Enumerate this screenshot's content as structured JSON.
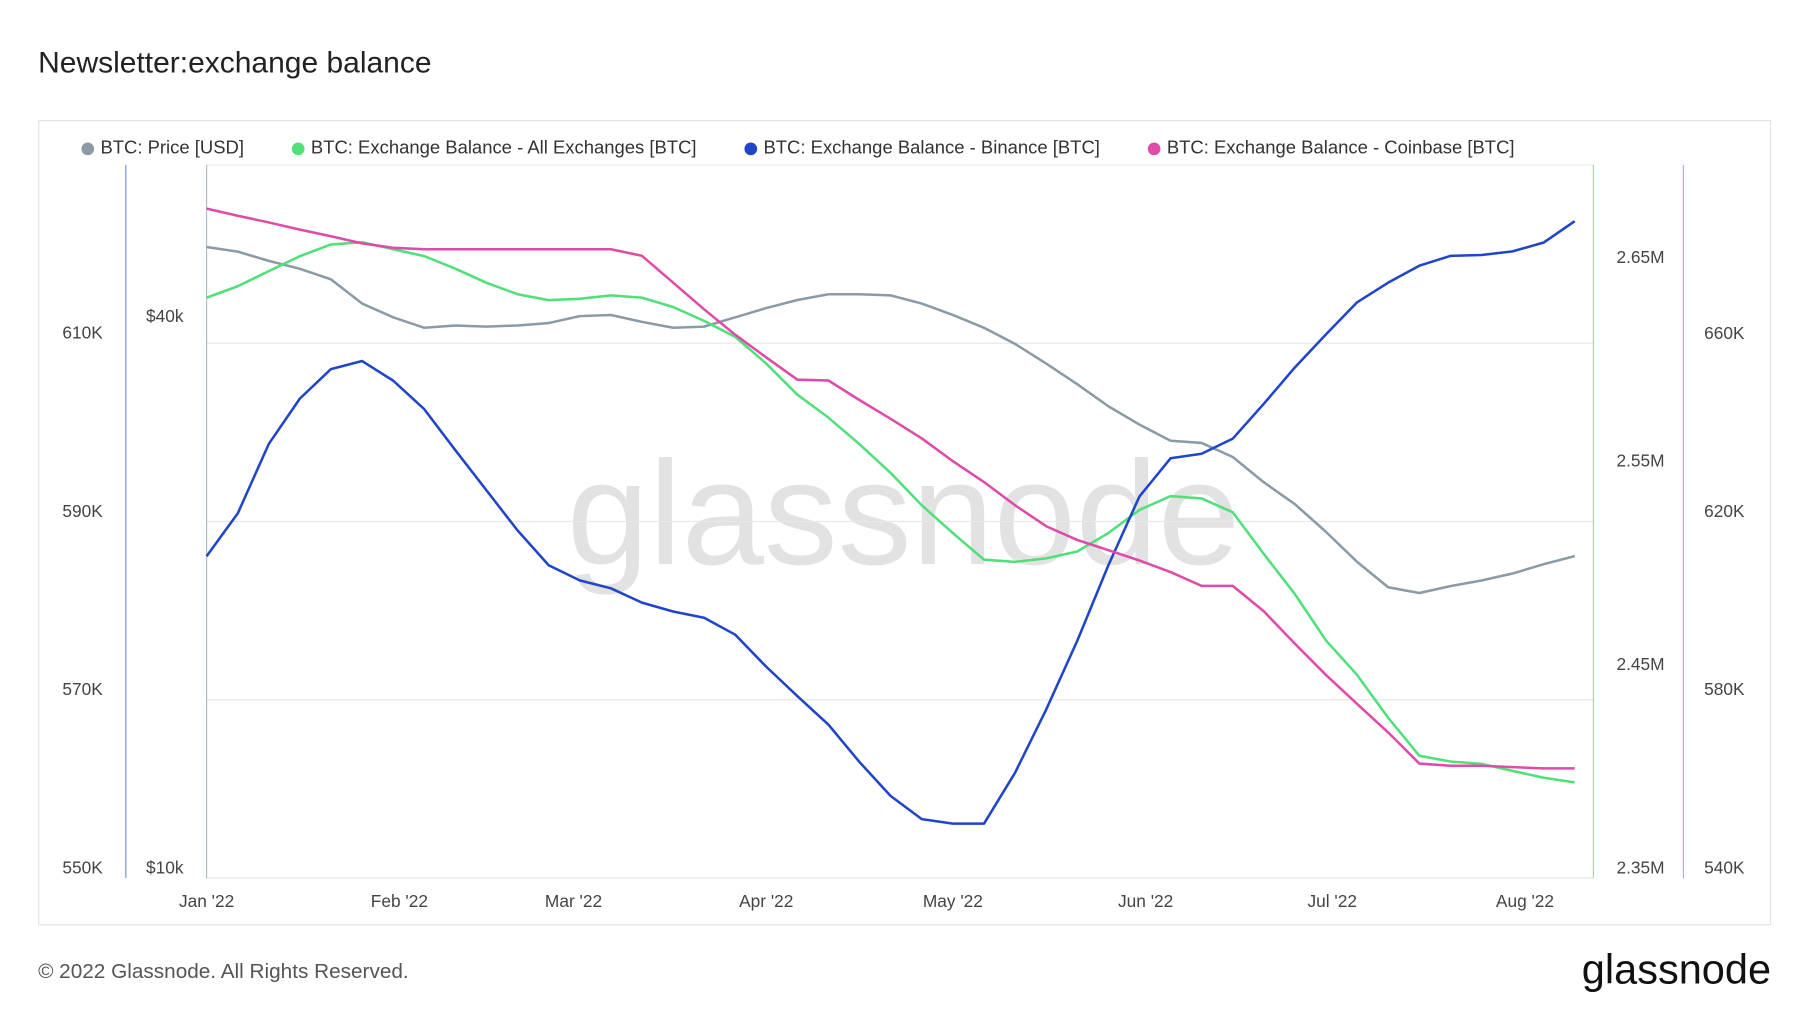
{
  "chart_data": {
    "type": "line",
    "title": "Newsletter:exchange balance",
    "watermark": "glassnode",
    "x": [
      0,
      5,
      10,
      15,
      20,
      25,
      30,
      35,
      40,
      45,
      50,
      55,
      60,
      65,
      70,
      75,
      80,
      85,
      90,
      95,
      100,
      105,
      110,
      115,
      120,
      125,
      130,
      135,
      140,
      145,
      150,
      155,
      160,
      165,
      170,
      175,
      180,
      185,
      190,
      195,
      200,
      205,
      210,
      215,
      220
    ],
    "xlim": [
      0,
      223
    ],
    "xticks": [
      {
        "value": 0,
        "label": "Jan '22"
      },
      {
        "value": 31,
        "label": "Feb '22"
      },
      {
        "value": 59,
        "label": "Mar '22"
      },
      {
        "value": 90,
        "label": "Apr '22"
      },
      {
        "value": 120,
        "label": "May '22"
      },
      {
        "value": 151,
        "label": "Jun '22"
      },
      {
        "value": 181,
        "label": "Jul '22"
      },
      {
        "value": 212,
        "label": "Aug '22"
      }
    ],
    "ylim": [
      550000,
      630000
    ],
    "yticks": [
      {
        "value": 550000,
        "label": "550K"
      },
      {
        "value": 570000,
        "label": "570K"
      },
      {
        "value": 590000,
        "label": "590K"
      },
      {
        "value": 610000,
        "label": "610K"
      }
    ],
    "y2lim": [
      10000,
      60040
    ],
    "y2scale": "log",
    "y2ticks": [
      {
        "value": 10000,
        "label": "$10k"
      },
      {
        "value": 40000,
        "label": "$40k"
      }
    ],
    "y3lim": [
      2350000,
      2700500
    ],
    "y3ticks": [
      {
        "value": 2350000,
        "label": "2.35M"
      },
      {
        "value": 2450000,
        "label": "2.45M"
      },
      {
        "value": 2550000,
        "label": "2.55M"
      },
      {
        "value": 2650000,
        "label": "2.65M"
      }
    ],
    "y4lim": [
      540000,
      700100
    ],
    "y4ticks": [
      {
        "value": 540000,
        "label": "540K"
      },
      {
        "value": 580000,
        "label": "580K"
      },
      {
        "value": 620000,
        "label": "620K"
      },
      {
        "value": 660000,
        "label": "660K"
      }
    ],
    "grid": true,
    "series": [
      {
        "name": "BTC: Price [USD]",
        "color": "#8a9ba6",
        "axis": "y2",
        "values": [
          48850,
          48290,
          47180,
          46240,
          45040,
          42380,
          40940,
          39880,
          40110,
          39990,
          40110,
          40350,
          41060,
          41180,
          40470,
          39880,
          39990,
          40940,
          41900,
          42760,
          43390,
          43390,
          43260,
          42380,
          41180,
          39880,
          38290,
          36450,
          34600,
          32740,
          31260,
          30020,
          29850,
          28820,
          27040,
          25590,
          23870,
          22140,
          20770,
          20470,
          20830,
          21130,
          21500,
          22010,
          22460
        ]
      },
      {
        "name": "BTC: Exchange Balance - All Exchanges [BTC]",
        "color": "#4fe07a",
        "axis": "y3",
        "values": [
          2635300,
          2640900,
          2648300,
          2655700,
          2661400,
          2662500,
          2659100,
          2655700,
          2649500,
          2642600,
          2637000,
          2634100,
          2634700,
          2636400,
          2635300,
          2630700,
          2623900,
          2616000,
          2602900,
          2587600,
          2576300,
          2563200,
          2549100,
          2533200,
          2519600,
          2506500,
          2505400,
          2507100,
          2510500,
          2519600,
          2530900,
          2537700,
          2536600,
          2529800,
          2509300,
          2489500,
          2466800,
          2449800,
          2428800,
          2410100,
          2407300,
          2406100,
          2402700,
          2399300,
          2397000
        ]
      },
      {
        "name": "BTC: Exchange Balance - Binance [BTC]",
        "color": "#1f45c8",
        "axis": "y",
        "values": [
          586100,
          590900,
          598700,
          603800,
          607100,
          608000,
          605800,
          602600,
          598000,
          593500,
          589000,
          585100,
          583400,
          582500,
          580900,
          579900,
          579200,
          577300,
          573700,
          570400,
          567200,
          563000,
          559200,
          556600,
          556100,
          556100,
          561800,
          568900,
          576600,
          585100,
          592800,
          597100,
          597600,
          599300,
          603200,
          607300,
          611000,
          614600,
          616800,
          618700,
          619800,
          619900,
          620300,
          621300,
          623700
        ]
      },
      {
        "name": "BTC: Exchange Balance - Coinbase [BTC]",
        "color": "#e04aa8",
        "axis": "y4",
        "values": [
          690300,
          688700,
          687200,
          685600,
          684100,
          682500,
          681500,
          681200,
          681200,
          681200,
          681200,
          681200,
          681200,
          681200,
          679700,
          673700,
          667700,
          662000,
          656900,
          651900,
          651700,
          647300,
          643100,
          638700,
          633600,
          628900,
          623700,
          619000,
          615900,
          613600,
          611300,
          608700,
          605600,
          605600,
          599900,
          592600,
          585600,
          579100,
          572700,
          565700,
          565200,
          565200,
          564900,
          564600,
          564600
        ]
      }
    ]
  },
  "footer": {
    "copyright": "© 2022 Glassnode. All Rights Reserved.",
    "logo": "glassnode"
  }
}
